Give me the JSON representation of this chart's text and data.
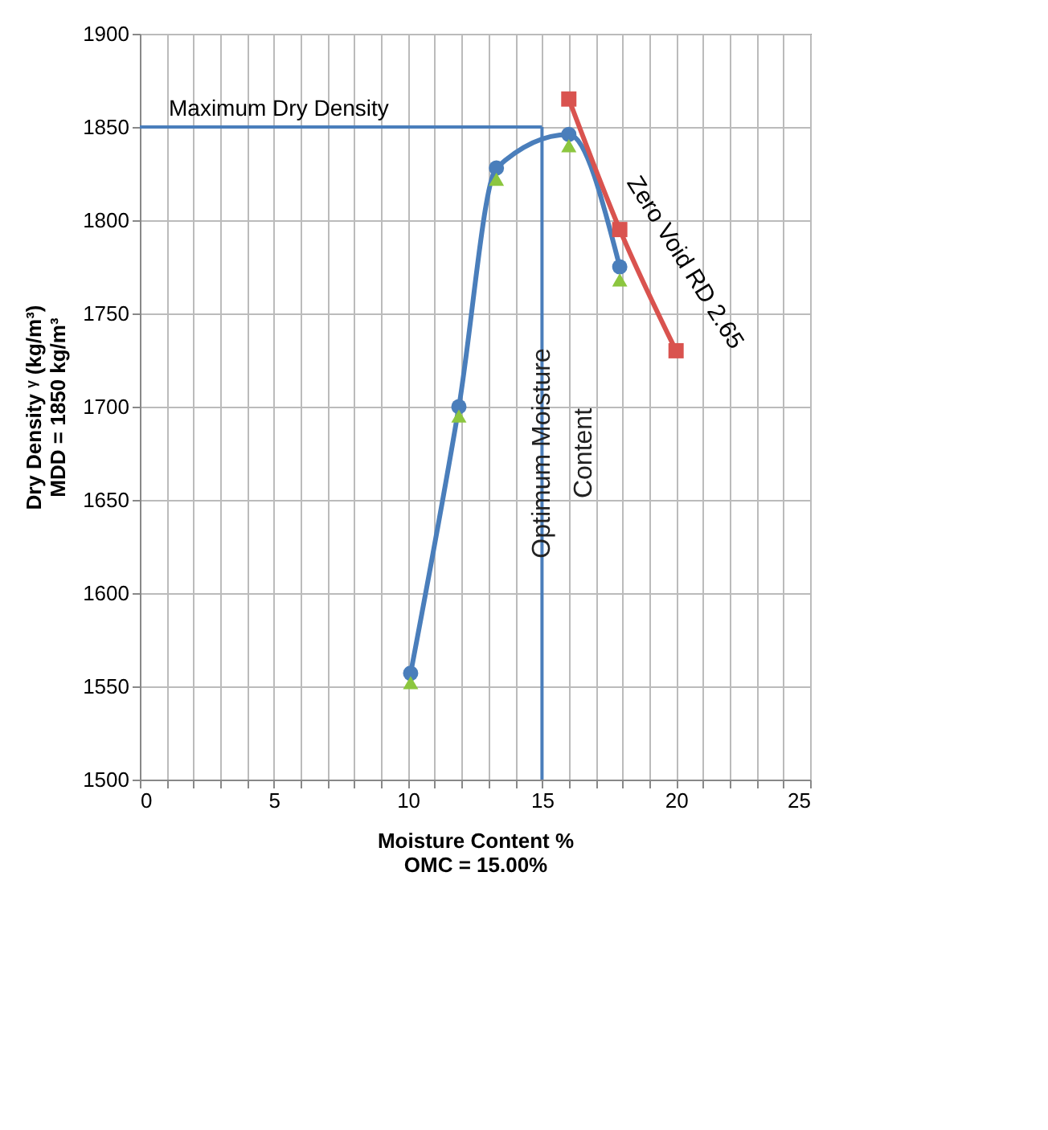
{
  "chart_data": {
    "type": "line",
    "xlabel": "Moisture Content %\nOMC = 15.00%",
    "ylabel": "Dry Density ᵞ (kg/m³)\nMDD = 1850 kg/m³",
    "series": [
      {
        "color": "#4a7ebb",
        "marker": "circle",
        "x": [
          10.1,
          11.9,
          13.3,
          16,
          17.9
        ],
        "values": [
          1557,
          1700,
          1828,
          1846,
          1775
        ]
      },
      {
        "type": "scatter",
        "color": "#8cc63f",
        "marker": "triangle",
        "x": [
          10.1,
          11.9,
          13.3,
          16,
          17.9
        ],
        "values": [
          1552,
          1695,
          1822,
          1840,
          1768
        ]
      },
      {
        "color": "#d9534f",
        "marker": "square",
        "x": [
          16,
          17.9,
          20
        ],
        "values": [
          1865,
          1795,
          1730
        ]
      }
    ],
    "xlim": [
      0,
      25
    ],
    "xticks": [
      0,
      {
        "value": 1,
        "label": null
      },
      {
        "value": 2,
        "label": null
      },
      {
        "value": 3,
        "label": null
      },
      {
        "value": 4,
        "label": null
      },
      5,
      {
        "value": 6,
        "label": null
      },
      {
        "value": 7,
        "label": null
      },
      {
        "value": 8,
        "label": null
      },
      {
        "value": 9,
        "label": null
      },
      10,
      {
        "value": 11,
        "label": null
      },
      {
        "value": 12,
        "label": null
      },
      {
        "value": 13,
        "label": null
      },
      {
        "value": 14,
        "label": null
      },
      15,
      {
        "value": 16,
        "label": null
      },
      {
        "value": 17,
        "label": null
      },
      {
        "value": 18,
        "label": null
      },
      {
        "value": 19,
        "label": null
      },
      20,
      {
        "value": 21,
        "label": null
      },
      {
        "value": 22,
        "label": null
      },
      {
        "value": 23,
        "label": null
      },
      {
        "value": 24,
        "label": null
      },
      25
    ],
    "ylim": [
      1500,
      1900
    ],
    "yticks": [
      1500,
      1550,
      1600,
      1650,
      1700,
      1750,
      1800,
      1850,
      1900
    ],
    "grid": true,
    "ref_lines": [
      {
        "axis": "y",
        "value": 1850,
        "label": "Maximum Dry Density",
        "color": "#4a7ebb"
      },
      {
        "axis": "x",
        "value": 15,
        "label": "Optimum Moisture\nContent",
        "color": "#4a7ebb"
      }
    ],
    "annotations": [
      "Zero Void RD 2.65"
    ]
  }
}
